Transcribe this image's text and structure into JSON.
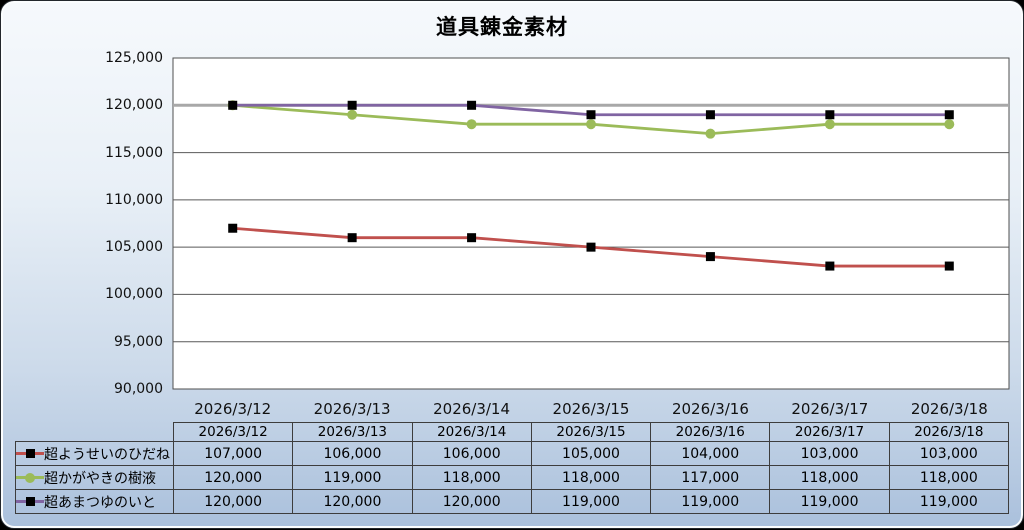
{
  "chart_data": {
    "type": "line",
    "title": "道具錬金素材",
    "categories": [
      "2026/3/12",
      "2026/3/13",
      "2026/3/14",
      "2026/3/15",
      "2026/3/16",
      "2026/3/17",
      "2026/3/18"
    ],
    "series": [
      {
        "name": "超ようせいのひだね",
        "color": "#C0504D",
        "marker": "square",
        "marker_color": "#000000",
        "values": [
          107000,
          106000,
          106000,
          105000,
          104000,
          103000,
          103000
        ]
      },
      {
        "name": "超かがやきの樹液",
        "color": "#9BBB59",
        "marker": "circle",
        "marker_color": "#9BBB59",
        "values": [
          120000,
          119000,
          118000,
          118000,
          117000,
          118000,
          118000
        ]
      },
      {
        "name": "超あまつゆのいと",
        "color": "#8064A2",
        "marker": "square",
        "marker_color": "#000000",
        "values": [
          120000,
          120000,
          120000,
          119000,
          119000,
          119000,
          119000
        ]
      }
    ],
    "y_axis": {
      "min": 90000,
      "max": 125000,
      "step": 5000,
      "tick_labels": [
        "125,000",
        "120,000",
        "115,000",
        "110,000",
        "105,000",
        "100,000",
        "95,000",
        "90,000"
      ]
    },
    "grid": true,
    "gridline_color": "#595959",
    "emphasized_gridline": {
      "value": 120000,
      "color": "#A8A8A8"
    },
    "plot_background": "#FFFFFF",
    "plot_border_color": "#4F4F4F",
    "legend_position": "table-left"
  },
  "table": {
    "header_dates": [
      "2026/3/12",
      "2026/3/13",
      "2026/3/14",
      "2026/3/15",
      "2026/3/16",
      "2026/3/17",
      "2026/3/18"
    ],
    "rows": [
      {
        "label": "超ようせいのひだね",
        "values": [
          "107,000",
          "106,000",
          "106,000",
          "105,000",
          "104,000",
          "103,000",
          "103,000"
        ]
      },
      {
        "label": "超かがやきの樹液",
        "values": [
          "120,000",
          "119,000",
          "118,000",
          "118,000",
          "117,000",
          "118,000",
          "118,000"
        ]
      },
      {
        "label": "超あまつゆのいと",
        "values": [
          "120,000",
          "120,000",
          "120,000",
          "119,000",
          "119,000",
          "119,000",
          "119,000"
        ]
      }
    ]
  },
  "colors": {
    "frame_background_top": "#F6F9FC",
    "frame_background_bottom": "#AAC0DC",
    "frame_inner_ring": "#FBFDFE",
    "text": "#000000"
  }
}
